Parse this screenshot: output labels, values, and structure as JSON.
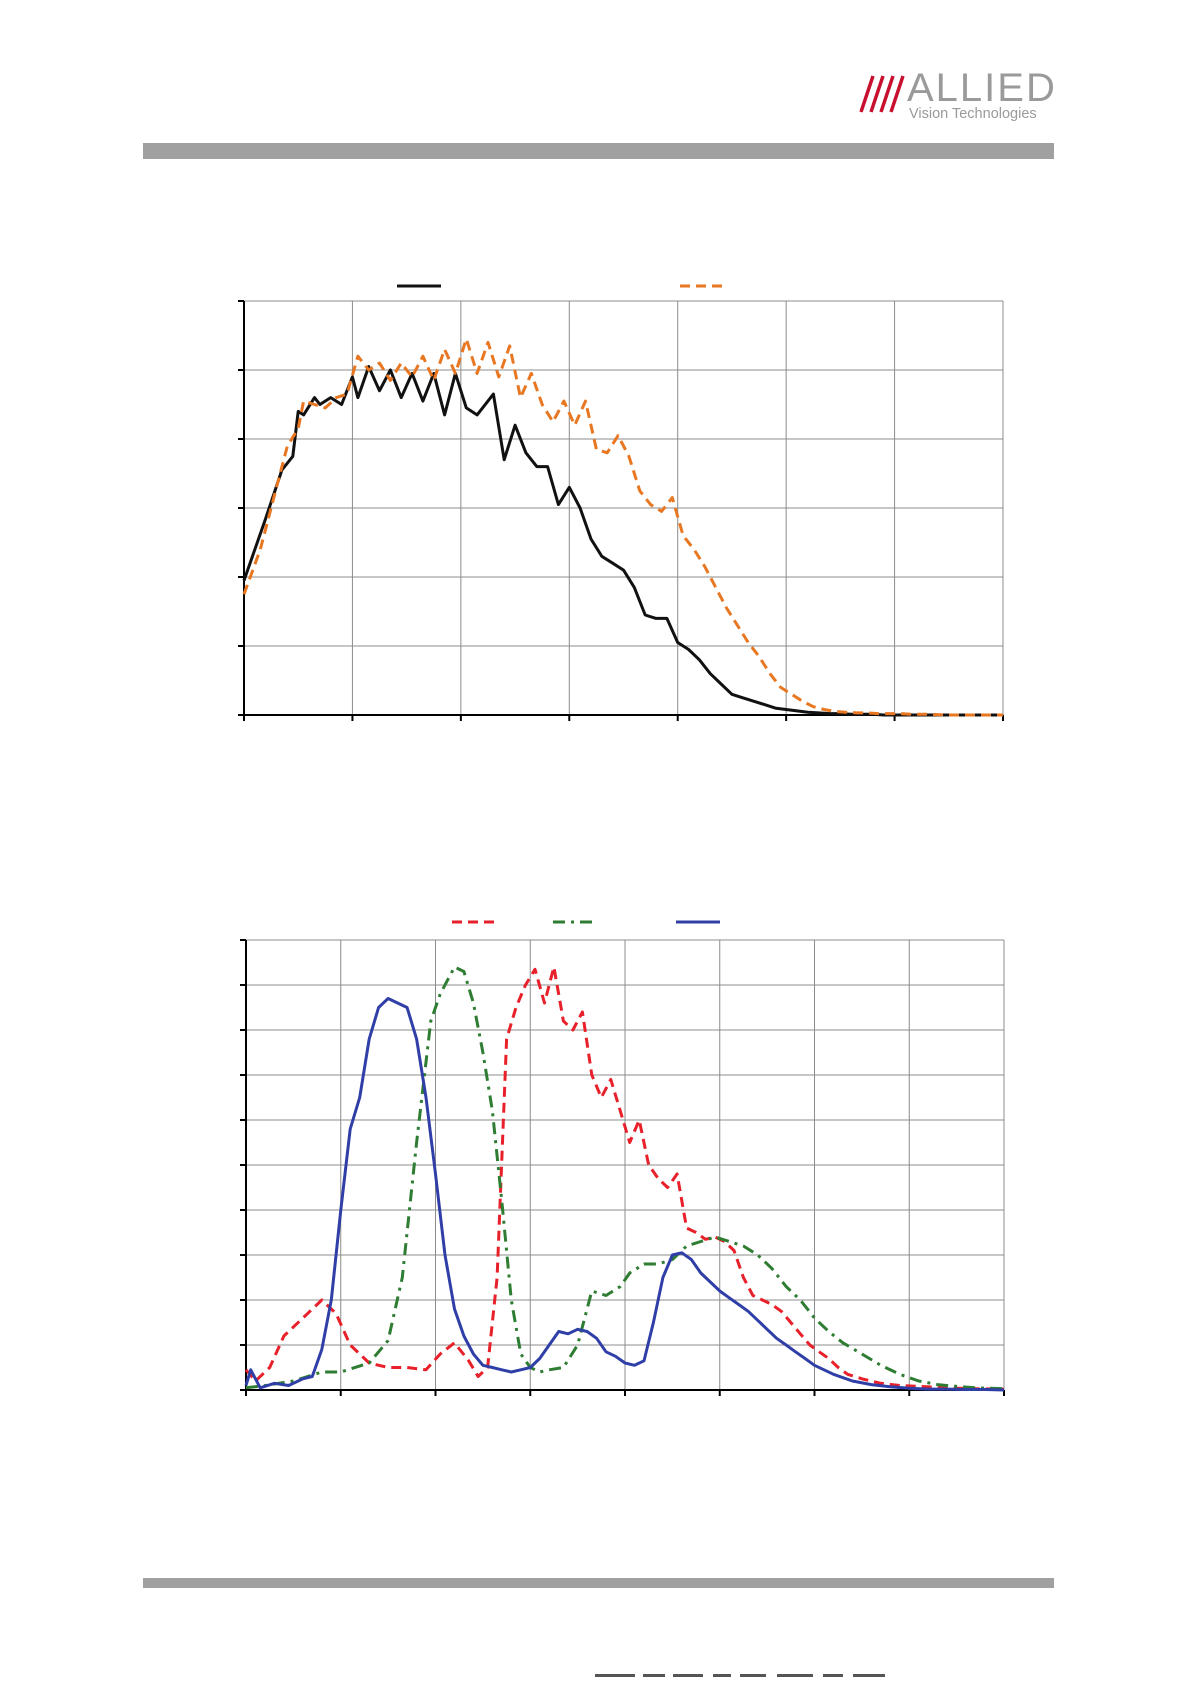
{
  "header": {
    "logo_name": "ALLIED",
    "logo_sub": "Vision Technologies",
    "logo_color": "#9a9a9a",
    "logo_accent": "#c8102e"
  },
  "chart_data": [
    {
      "type": "line",
      "title": "",
      "xlabel": "",
      "ylabel": "",
      "xlim": [
        0,
        7
      ],
      "ylim": [
        0,
        6
      ],
      "x_ticks": 7,
      "y_ticks": 6,
      "grid": true,
      "legend": "top",
      "series": [
        {
          "color": "#111111",
          "dash": "solid",
          "x": [
            0,
            0.2,
            0.35,
            0.45,
            0.5,
            0.55,
            0.65,
            0.7,
            0.8,
            0.9,
            1.0,
            1.05,
            1.15,
            1.25,
            1.35,
            1.45,
            1.55,
            1.65,
            1.75,
            1.85,
            1.95,
            2.05,
            2.15,
            2.3,
            2.4,
            2.5,
            2.6,
            2.7,
            2.8,
            2.9,
            3.0,
            3.1,
            3.2,
            3.3,
            3.4,
            3.5,
            3.6,
            3.7,
            3.8,
            3.9,
            4.0,
            4.1,
            4.2,
            4.3,
            4.4,
            4.5,
            4.6,
            4.7,
            4.8,
            4.9,
            5.0,
            5.1,
            5.2,
            5.3,
            5.4,
            5.5,
            5.6,
            5.7,
            5.8,
            5.9,
            6.0,
            6.1,
            6.2,
            6.4,
            6.6,
            6.8,
            7.0
          ],
          "y": [
            1.95,
            2.85,
            3.55,
            3.75,
            4.4,
            4.35,
            4.6,
            4.5,
            4.6,
            4.5,
            4.9,
            4.6,
            5.05,
            4.7,
            5.0,
            4.6,
            4.95,
            4.55,
            4.95,
            4.35,
            4.95,
            4.45,
            4.35,
            4.65,
            3.7,
            4.2,
            3.8,
            3.6,
            3.6,
            3.05,
            3.3,
            3.0,
            2.55,
            2.3,
            2.2,
            2.1,
            1.85,
            1.45,
            1.4,
            1.4,
            1.05,
            0.95,
            0.8,
            0.6,
            0.45,
            0.3,
            0.25,
            0.2,
            0.15,
            0.1,
            0.08,
            0.06,
            0.04,
            0.03,
            0.02,
            0.02,
            0.01,
            0.01,
            0.01,
            0.0,
            0.0,
            0.0,
            0.0,
            0.0,
            0.0,
            0.0,
            0.0
          ]
        },
        {
          "color": "#e87722",
          "dash": "dashed",
          "x": [
            0,
            0.15,
            0.3,
            0.4,
            0.5,
            0.55,
            0.65,
            0.75,
            0.85,
            0.95,
            1.05,
            1.15,
            1.25,
            1.35,
            1.45,
            1.55,
            1.65,
            1.75,
            1.85,
            1.95,
            2.05,
            2.15,
            2.25,
            2.35,
            2.45,
            2.55,
            2.65,
            2.75,
            2.85,
            2.95,
            3.05,
            3.15,
            3.25,
            3.35,
            3.45,
            3.55,
            3.65,
            3.75,
            3.85,
            3.95,
            4.05,
            4.15,
            4.25,
            4.35,
            4.45,
            4.55,
            4.65,
            4.75,
            4.85,
            4.95,
            5.05,
            5.15,
            5.25,
            5.35,
            5.45,
            5.55,
            5.65,
            5.75,
            5.85,
            5.95,
            6.05,
            6.15,
            6.3,
            6.5,
            6.7,
            6.9,
            7.0
          ],
          "y": [
            1.75,
            2.4,
            3.3,
            3.9,
            4.15,
            4.55,
            4.5,
            4.45,
            4.6,
            4.65,
            5.2,
            5.0,
            5.1,
            4.85,
            5.1,
            4.9,
            5.2,
            4.85,
            5.3,
            4.95,
            5.45,
            4.95,
            5.4,
            4.9,
            5.35,
            4.6,
            4.95,
            4.5,
            4.25,
            4.55,
            4.2,
            4.55,
            3.85,
            3.8,
            4.05,
            3.75,
            3.25,
            3.05,
            2.95,
            3.15,
            2.6,
            2.4,
            2.15,
            1.85,
            1.55,
            1.3,
            1.05,
            0.85,
            0.6,
            0.4,
            0.3,
            0.2,
            0.12,
            0.08,
            0.05,
            0.04,
            0.03,
            0.03,
            0.02,
            0.02,
            0.02,
            0.01,
            0.01,
            0.0,
            0.0,
            0.0,
            0.0
          ]
        }
      ]
    },
    {
      "type": "line",
      "title": "",
      "xlabel": "",
      "ylabel": "",
      "xlim": [
        0,
        8
      ],
      "ylim": [
        0,
        10
      ],
      "x_ticks": 8,
      "y_ticks": 10,
      "grid": true,
      "legend": "top",
      "series": [
        {
          "color": "#e8202a",
          "dash": "dashed",
          "x": [
            0,
            0.1,
            0.25,
            0.4,
            0.6,
            0.8,
            0.95,
            1.1,
            1.3,
            1.5,
            1.7,
            1.9,
            2.05,
            2.2,
            2.35,
            2.45,
            2.55,
            2.65,
            2.75,
            2.85,
            2.95,
            3.05,
            3.15,
            3.25,
            3.35,
            3.45,
            3.55,
            3.65,
            3.75,
            3.85,
            3.95,
            4.05,
            4.15,
            4.25,
            4.35,
            4.45,
            4.55,
            4.65,
            4.75,
            4.85,
            4.95,
            5.05,
            5.15,
            5.25,
            5.35,
            5.45,
            5.55,
            5.65,
            5.75,
            5.85,
            5.95,
            6.05,
            6.15,
            6.25,
            6.35,
            6.5,
            6.7,
            6.9,
            7.1,
            7.3,
            7.5,
            7.7,
            8.0
          ],
          "y": [
            0.45,
            0.2,
            0.5,
            1.2,
            1.6,
            2.0,
            1.7,
            1.0,
            0.6,
            0.5,
            0.5,
            0.45,
            0.8,
            1.05,
            0.65,
            0.3,
            0.5,
            2.5,
            7.8,
            8.5,
            9.0,
            9.35,
            8.6,
            9.4,
            8.2,
            8.0,
            8.4,
            7.0,
            6.5,
            6.9,
            6.2,
            5.5,
            6.0,
            5.0,
            4.7,
            4.5,
            4.8,
            3.6,
            3.5,
            3.35,
            3.4,
            3.3,
            3.1,
            2.5,
            2.1,
            2.0,
            1.9,
            1.75,
            1.5,
            1.25,
            1.0,
            0.85,
            0.7,
            0.5,
            0.35,
            0.25,
            0.15,
            0.1,
            0.08,
            0.06,
            0.04,
            0.03,
            0.02
          ]
        },
        {
          "color": "#2e7d32",
          "dash": "dashdot",
          "x": [
            0,
            0.2,
            0.5,
            0.8,
            1.0,
            1.3,
            1.5,
            1.65,
            1.8,
            1.95,
            2.05,
            2.2,
            2.3,
            2.4,
            2.5,
            2.6,
            2.7,
            2.8,
            2.9,
            3.0,
            3.1,
            3.2,
            3.35,
            3.5,
            3.65,
            3.8,
            3.95,
            4.05,
            4.2,
            4.35,
            4.5,
            4.65,
            4.8,
            4.95,
            5.1,
            5.25,
            5.4,
            5.55,
            5.7,
            5.85,
            6.0,
            6.15,
            6.3,
            6.5,
            6.7,
            6.9,
            7.1,
            7.3,
            7.5,
            7.7,
            8.0
          ],
          "y": [
            0.05,
            0.1,
            0.2,
            0.4,
            0.4,
            0.6,
            1.1,
            2.5,
            5.5,
            8.2,
            8.8,
            9.4,
            9.3,
            8.6,
            7.5,
            6.2,
            4.2,
            2.0,
            0.8,
            0.5,
            0.4,
            0.45,
            0.5,
            1.0,
            2.2,
            2.1,
            2.3,
            2.6,
            2.8,
            2.8,
            2.9,
            3.2,
            3.3,
            3.4,
            3.3,
            3.2,
            3.0,
            2.7,
            2.3,
            2.0,
            1.6,
            1.3,
            1.05,
            0.8,
            0.55,
            0.35,
            0.2,
            0.12,
            0.08,
            0.05,
            0.03
          ]
        },
        {
          "color": "#2f3fa7",
          "dash": "solid",
          "x": [
            0,
            0.05,
            0.15,
            0.3,
            0.45,
            0.6,
            0.7,
            0.8,
            0.9,
            1.0,
            1.1,
            1.2,
            1.3,
            1.4,
            1.5,
            1.6,
            1.7,
            1.8,
            1.9,
            2.0,
            2.1,
            2.2,
            2.3,
            2.4,
            2.5,
            2.6,
            2.7,
            2.8,
            2.9,
            3.0,
            3.1,
            3.2,
            3.3,
            3.4,
            3.5,
            3.6,
            3.7,
            3.8,
            3.9,
            4.0,
            4.1,
            4.2,
            4.3,
            4.4,
            4.5,
            4.6,
            4.7,
            4.8,
            4.9,
            5.0,
            5.1,
            5.2,
            5.3,
            5.4,
            5.5,
            5.6,
            5.7,
            5.8,
            5.9,
            6.0,
            6.2,
            6.4,
            6.6,
            6.8,
            7.0,
            7.2,
            7.4,
            7.6,
            7.8,
            8.0
          ],
          "y": [
            0.1,
            0.45,
            0.05,
            0.15,
            0.1,
            0.25,
            0.3,
            0.9,
            2.0,
            4.0,
            5.8,
            6.5,
            7.8,
            8.5,
            8.7,
            8.6,
            8.5,
            7.8,
            6.5,
            4.8,
            3.0,
            1.8,
            1.2,
            0.8,
            0.55,
            0.5,
            0.45,
            0.4,
            0.45,
            0.5,
            0.7,
            1.0,
            1.3,
            1.25,
            1.35,
            1.3,
            1.15,
            0.85,
            0.75,
            0.6,
            0.55,
            0.65,
            1.5,
            2.5,
            3.0,
            3.05,
            2.9,
            2.6,
            2.4,
            2.2,
            2.05,
            1.9,
            1.75,
            1.55,
            1.35,
            1.15,
            1.0,
            0.85,
            0.7,
            0.55,
            0.35,
            0.2,
            0.12,
            0.07,
            0.04,
            0.02,
            0.02,
            0.01,
            0.01,
            0.0
          ]
        }
      ]
    }
  ]
}
